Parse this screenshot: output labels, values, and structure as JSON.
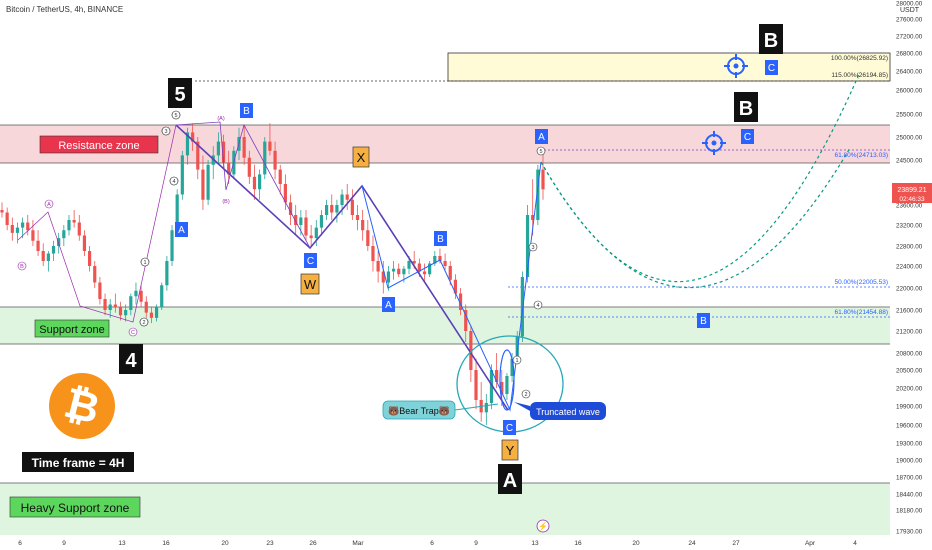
{
  "header": {
    "title": "Bitcoin / TetherUS, 4h, BINANCE"
  },
  "currency": "USDT",
  "price_badge": {
    "price": "23899.21",
    "countdown": "02:46:33"
  },
  "chart_data": {
    "type": "candlestick",
    "y_ticks": [
      17930,
      18180,
      18440,
      18700,
      19000,
      19300,
      19600,
      19900,
      20200,
      20500,
      20800,
      21200,
      21600,
      22000,
      22400,
      22800,
      23200,
      23600,
      24000,
      24500,
      25000,
      25500,
      26000,
      26400,
      26800,
      27200,
      27600,
      28000
    ],
    "y_tick_labels": [
      "17930.00",
      "18180.00",
      "18440.00",
      "18700.00",
      "19000.00",
      "19300.00",
      "19600.00",
      "19900.00",
      "20200.00",
      "20500.00",
      "20800.00",
      "21200.00",
      "21600.00",
      "22000.00",
      "22400.00",
      "22800.00",
      "23200.00",
      "23600.00",
      "",
      "24500.00",
      "25000.00",
      "25500.00",
      "26000.00",
      "26400.00",
      "26800.00",
      "27200.00",
      "27600.00",
      "28000.00"
    ],
    "x_tick_labels": [
      "6",
      "9",
      "13",
      "16",
      "20",
      "23",
      "26",
      "Mar",
      "6",
      "9",
      "13",
      "16",
      "20",
      "24",
      "27",
      "Apr",
      "4"
    ],
    "candles_ohlc": [
      [
        23500,
        23650,
        23350,
        23450
      ],
      [
        23450,
        23550,
        23100,
        23200
      ],
      [
        23200,
        23350,
        22900,
        23050
      ],
      [
        23050,
        23250,
        22850,
        23150
      ],
      [
        23150,
        23350,
        22950,
        23250
      ],
      [
        23250,
        23400,
        23000,
        23100
      ],
      [
        23100,
        23300,
        22800,
        22900
      ],
      [
        22900,
        23100,
        22600,
        22700
      ],
      [
        22700,
        22850,
        22400,
        22500
      ],
      [
        22500,
        22700,
        22300,
        22650
      ],
      [
        22650,
        22900,
        22500,
        22800
      ],
      [
        22800,
        23050,
        22650,
        22950
      ],
      [
        22950,
        23200,
        22800,
        23100
      ],
      [
        23100,
        23400,
        23000,
        23300
      ],
      [
        23300,
        23500,
        23150,
        23250
      ],
      [
        23250,
        23400,
        22900,
        23000
      ],
      [
        23000,
        23100,
        22600,
        22700
      ],
      [
        22700,
        22800,
        22300,
        22400
      ],
      [
        22400,
        22500,
        22000,
        22100
      ],
      [
        22100,
        22200,
        21700,
        21800
      ],
      [
        21800,
        21900,
        21500,
        21600
      ],
      [
        21600,
        21800,
        21450,
        21700
      ],
      [
        21700,
        21900,
        21550,
        21650
      ],
      [
        21650,
        21750,
        21400,
        21500
      ],
      [
        21500,
        21700,
        21380,
        21600
      ],
      [
        21600,
        21900,
        21500,
        21850
      ],
      [
        21850,
        22100,
        21700,
        21950
      ],
      [
        21950,
        22050,
        21650,
        21750
      ],
      [
        21750,
        21850,
        21450,
        21550
      ],
      [
        21550,
        21650,
        21350,
        21450
      ],
      [
        21450,
        21700,
        21380,
        21650
      ],
      [
        21650,
        22100,
        21600,
        22050
      ],
      [
        22050,
        22600,
        21950,
        22500
      ],
      [
        22500,
        23200,
        22400,
        23100
      ],
      [
        23100,
        23900,
        23000,
        23800
      ],
      [
        23800,
        24700,
        23700,
        24600
      ],
      [
        24600,
        25200,
        24400,
        25100
      ],
      [
        25100,
        25300,
        24700,
        24900
      ],
      [
        24900,
        25000,
        24100,
        24300
      ],
      [
        24300,
        24600,
        23500,
        23700
      ],
      [
        23700,
        24500,
        23600,
        24400
      ],
      [
        24400,
        24800,
        24100,
        24600
      ],
      [
        24600,
        25100,
        24400,
        24900
      ],
      [
        24900,
        25050,
        24300,
        24450
      ],
      [
        24450,
        24700,
        24000,
        24200
      ],
      [
        24200,
        24800,
        24100,
        24700
      ],
      [
        24700,
        25200,
        24500,
        25000
      ],
      [
        25000,
        25250,
        24400,
        24550
      ],
      [
        24550,
        24700,
        24000,
        24150
      ],
      [
        24150,
        24400,
        23700,
        23900
      ],
      [
        23900,
        24300,
        23700,
        24200
      ],
      [
        24200,
        25000,
        24100,
        24900
      ],
      [
        24900,
        25300,
        24600,
        24700
      ],
      [
        24700,
        24900,
        24100,
        24300
      ],
      [
        24300,
        24400,
        23800,
        24000
      ],
      [
        24000,
        24200,
        23500,
        23650
      ],
      [
        23650,
        23800,
        23200,
        23400
      ],
      [
        23400,
        23600,
        23000,
        23200
      ],
      [
        23200,
        23500,
        23000,
        23350
      ],
      [
        23350,
        23500,
        22900,
        23000
      ],
      [
        23000,
        23200,
        22800,
        22950
      ],
      [
        22950,
        23300,
        22800,
        23150
      ],
      [
        23150,
        23500,
        23000,
        23400
      ],
      [
        23400,
        23700,
        23300,
        23600
      ],
      [
        23600,
        23800,
        23300,
        23450
      ],
      [
        23450,
        23700,
        23250,
        23600
      ],
      [
        23600,
        23900,
        23400,
        23800
      ],
      [
        23800,
        24000,
        23500,
        23700
      ],
      [
        23700,
        23900,
        23300,
        23400
      ],
      [
        23400,
        23600,
        23100,
        23300
      ],
      [
        23300,
        23500,
        22900,
        23100
      ],
      [
        23100,
        23300,
        22700,
        22800
      ],
      [
        22800,
        23000,
        22300,
        22500
      ],
      [
        22500,
        22700,
        22100,
        22300
      ],
      [
        22300,
        22500,
        21900,
        22100
      ],
      [
        22100,
        22400,
        21950,
        22300
      ],
      [
        22300,
        22500,
        22150,
        22350
      ],
      [
        22350,
        22450,
        22200,
        22250
      ],
      [
        22250,
        22400,
        22100,
        22350
      ],
      [
        22350,
        22600,
        22250,
        22500
      ],
      [
        22500,
        22700,
        22350,
        22450
      ],
      [
        22450,
        22550,
        22200,
        22300
      ],
      [
        22300,
        22450,
        22100,
        22250
      ],
      [
        22250,
        22500,
        22200,
        22450
      ],
      [
        22450,
        22700,
        22400,
        22600
      ],
      [
        22600,
        22750,
        22450,
        22500
      ],
      [
        22500,
        22650,
        22300,
        22400
      ],
      [
        22400,
        22500,
        22050,
        22150
      ],
      [
        22150,
        22250,
        21800,
        21900
      ],
      [
        21900,
        22000,
        21500,
        21600
      ],
      [
        21600,
        21700,
        21000,
        21200
      ],
      [
        21200,
        21300,
        20300,
        20500
      ],
      [
        20500,
        20700,
        19850,
        20000
      ],
      [
        20000,
        20300,
        19650,
        19800
      ],
      [
        19800,
        20100,
        19600,
        19950
      ],
      [
        19950,
        20600,
        19850,
        20500
      ],
      [
        20500,
        20800,
        20200,
        20300
      ],
      [
        20300,
        20500,
        19900,
        20100
      ],
      [
        20100,
        20450,
        20000,
        20400
      ],
      [
        20400,
        20800,
        20300,
        20700
      ],
      [
        20700,
        21200,
        20600,
        21100
      ],
      [
        21100,
        22300,
        21000,
        22200
      ],
      [
        22200,
        23600,
        22100,
        23400
      ],
      [
        23400,
        24100,
        23000,
        23300
      ],
      [
        23300,
        24400,
        23200,
        24300
      ],
      [
        24300,
        24750,
        23700,
        23899
      ]
    ]
  },
  "annotations": {
    "zones": {
      "resistance": "Resistance zone",
      "support": "Support zone",
      "heavy_support": "Heavy Support zone"
    },
    "timeframe": "Time frame = 4H",
    "bear_trap": "🐻Bear Trap🐻",
    "truncated_wave": "Truncated wave",
    "fib_levels": [
      "100.00%(26825.92)",
      "115.00%(26194.85)",
      "50.00%(22005.53)",
      "61.80%(21454.88)",
      "61.80%(24713.03)"
    ],
    "wave_major": [
      "5",
      "4",
      "A",
      "B",
      "B",
      "X"
    ],
    "wave_blue": [
      "A",
      "B",
      "C",
      "A",
      "B",
      "C",
      "A",
      "B",
      "C",
      "C"
    ],
    "wave_yellow": [
      "W",
      "Y"
    ],
    "wave_small_circled": [
      "1",
      "2",
      "3",
      "4",
      "5",
      "(A)",
      "(B)",
      "(C)",
      "A",
      "B",
      "C",
      "1",
      "2",
      "3",
      "4",
      "5",
      "1",
      "2",
      "3",
      "4",
      "5"
    ]
  },
  "colors": {
    "up": "#26a69a",
    "down": "#ef5350",
    "resistance_fill": "#f8d7da",
    "support_fill": "#dff5df",
    "fib_fill": "#fffbd6",
    "wave_line": "#5b3fb8",
    "blue_label": "#2962ff",
    "projection": "#089981"
  }
}
